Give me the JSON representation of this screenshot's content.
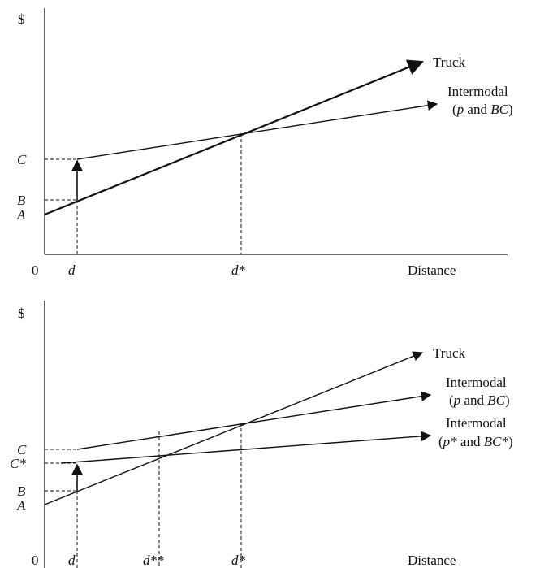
{
  "panels": [
    {
      "ylabel": "$",
      "xlabel": "Distance",
      "origin": "0",
      "left_labels": {
        "C": "C",
        "B": "B",
        "A": "A"
      },
      "x_marks": {
        "d": "d",
        "dstar": "d*"
      },
      "lines": {
        "truck": "Truck",
        "intermodal_1": "Intermodal",
        "intermodal_1_p": "p",
        "intermodal_and": " and ",
        "intermodal_1_bc": "BC"
      }
    },
    {
      "ylabel": "$",
      "xlabel": "Distance",
      "origin": "0",
      "left_labels": {
        "C": "C",
        "Cstar": "C*",
        "B": "B",
        "A": "A"
      },
      "x_marks": {
        "d": "d",
        "dstarstar": "d**",
        "dstar": "d*"
      },
      "lines": {
        "truck": "Truck",
        "intermodal_1": "Intermodal",
        "intermodal_1_p": "p",
        "intermodal_and": " and ",
        "intermodal_1_bc": "BC",
        "intermodal_2": "Intermodal",
        "intermodal_2_p": "p*",
        "intermodal_2_bc": "BC*"
      }
    }
  ]
}
